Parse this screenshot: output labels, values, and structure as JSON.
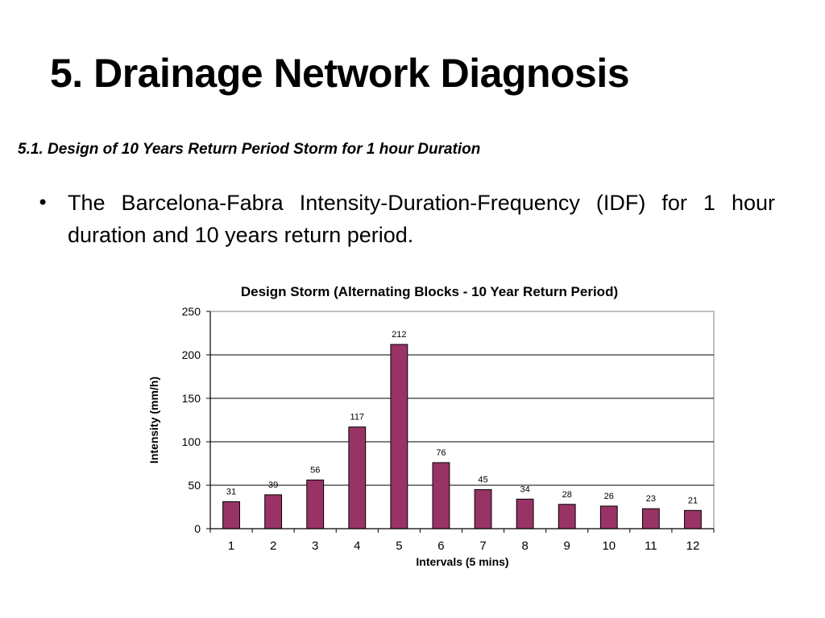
{
  "slide": {
    "title": "5. Drainage Network Diagnosis",
    "subtitle": "5.1. Design of 10 Years Return Period Storm for 1 hour Duration",
    "bullet_symbol": "•",
    "bullet_text": "The Barcelona-Fabra Intensity-Duration-Frequency (IDF)   for 1 hour duration and 10 years return period."
  },
  "chart_data": {
    "type": "bar",
    "title": "Design Storm (Alternating Blocks - 10 Year Return Period)",
    "xlabel": "Intervals (5 mins)",
    "ylabel": "Intensity (mm/h)",
    "categories": [
      "1",
      "2",
      "3",
      "4",
      "5",
      "6",
      "7",
      "8",
      "9",
      "10",
      "11",
      "12"
    ],
    "values": [
      31,
      39,
      56,
      117,
      212,
      76,
      45,
      34,
      28,
      26,
      23,
      21
    ],
    "data_labels": [
      "31",
      "39",
      "56",
      "117",
      "212",
      "76",
      "45",
      "34",
      "28",
      "26",
      "23",
      "21"
    ],
    "ylim": [
      0,
      250
    ],
    "yticks": [
      0,
      50,
      100,
      150,
      200,
      250
    ],
    "ytick_labels": [
      "0",
      "50",
      "100",
      "150",
      "200",
      "250"
    ],
    "grid": true,
    "colors": {
      "bar": "#993366",
      "bar_edge": "#000000",
      "gridline": "#000000"
    }
  }
}
